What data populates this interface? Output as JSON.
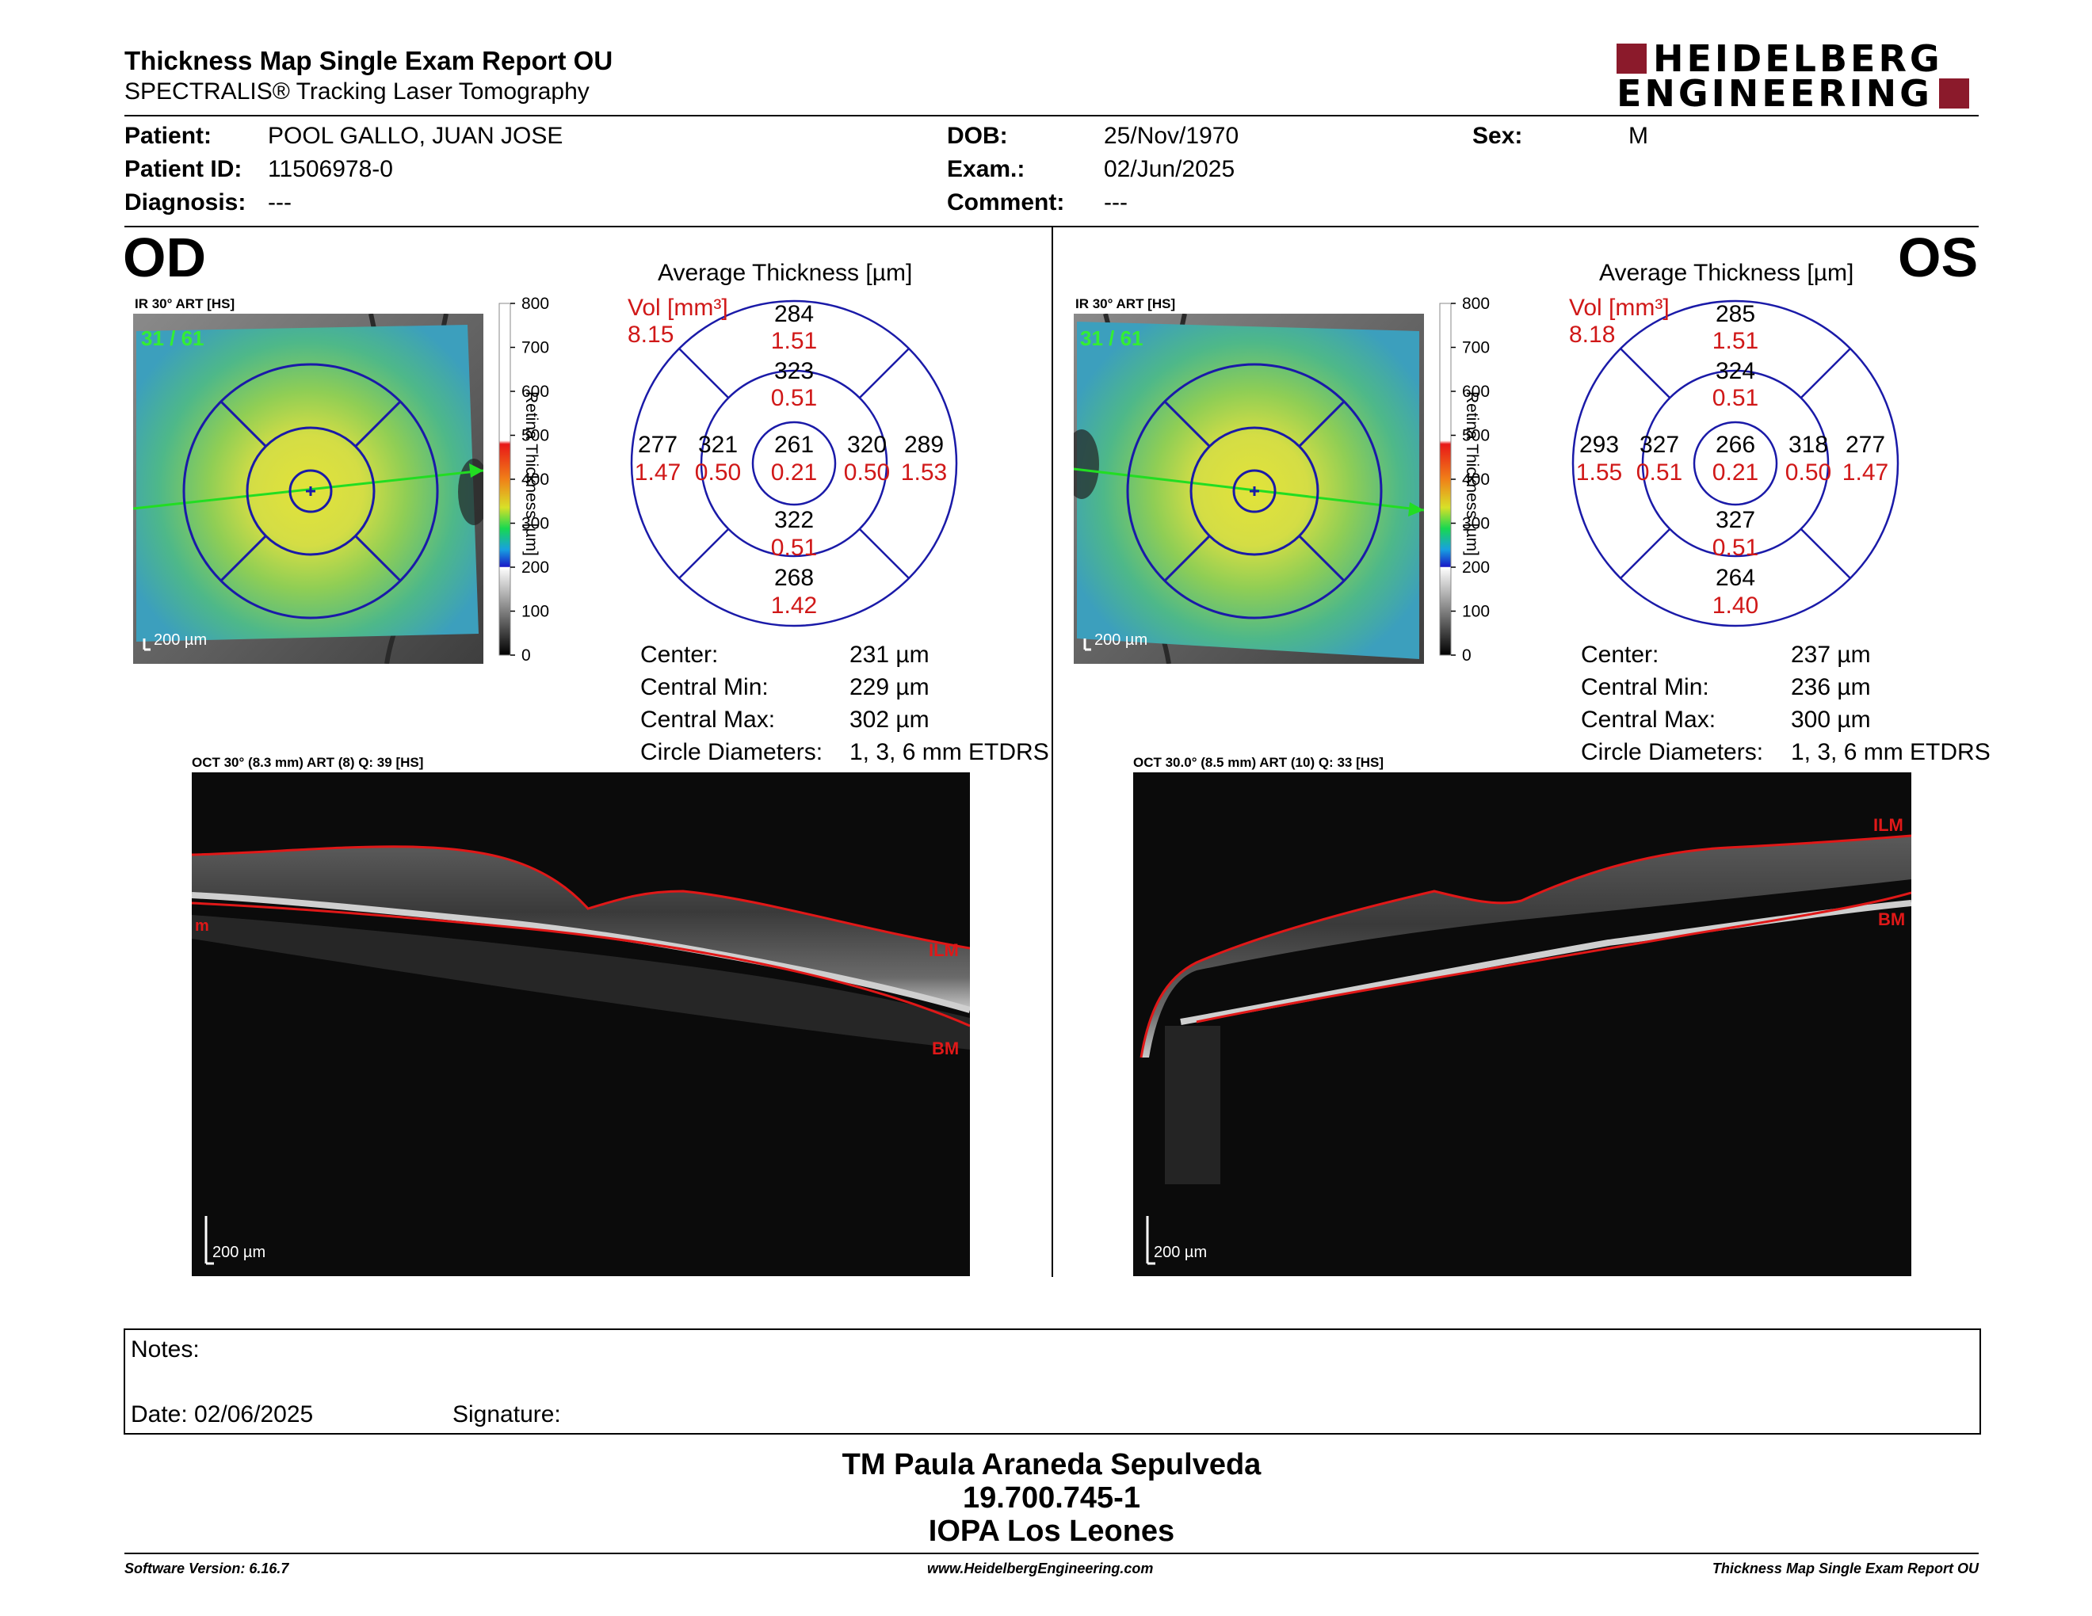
{
  "header": {
    "title": "Thickness Map Single Exam Report OU",
    "subtitle": "SPECTRALIS® Tracking Laser Tomography",
    "logo_line1": "HEIDELBERG",
    "logo_line2": "ENGINEERING",
    "logo_color": "#8b1a2b"
  },
  "patient": {
    "patient_label": "Patient:",
    "patient_value": "POOL GALLO, JUAN JOSE",
    "id_label": "Patient ID:",
    "id_value": "11506978-0",
    "diagnosis_label": "Diagnosis:",
    "diagnosis_value": "---",
    "dob_label": "DOB:",
    "dob_value": "25/Nov/1970",
    "exam_label": "Exam.:",
    "exam_value": "02/Jun/2025",
    "comment_label": "Comment:",
    "comment_value": "---",
    "sex_label": "Sex:",
    "sex_value": "M"
  },
  "colorbar": {
    "label": "Retina Thickness [µm]",
    "ticks": [
      "800",
      "700",
      "600",
      "500",
      "400",
      "300",
      "200",
      "100",
      "0"
    ]
  },
  "od": {
    "eye": "OD",
    "ir_label": "IR 30° ART [HS]",
    "ir_frames": "31 / 61",
    "scale": "200 µm",
    "avg_title": "Average Thickness [µm]",
    "vol_label": "Vol [mm³]",
    "vol_total": "8.15",
    "outer_sup": "284",
    "outer_sup_vol": "1.51",
    "inner_sup": "323",
    "inner_sup_vol": "0.51",
    "outer_left": "277",
    "outer_left_vol": "1.47",
    "inner_left": "321",
    "inner_left_vol": "0.50",
    "center": "261",
    "center_vol": "0.21",
    "inner_right": "320",
    "inner_right_vol": "0.50",
    "outer_right": "289",
    "outer_right_vol": "1.53",
    "inner_inf": "322",
    "inner_inf_vol": "0.51",
    "outer_inf": "268",
    "outer_inf_vol": "1.42",
    "stats": [
      {
        "label": "Center:",
        "value": "231 µm"
      },
      {
        "label": "Central Min:",
        "value": "229 µm"
      },
      {
        "label": "Central Max:",
        "value": "302 µm"
      },
      {
        "label": "Circle Diameters:",
        "value": "1, 3, 6 mm ETDRS"
      }
    ],
    "oct_label": "OCT 30° (8.3 mm) ART (8) Q: 39 [HS]",
    "ilm": "ILM",
    "bm": "BM",
    "left_mark": "m",
    "oct_scale": "200 µm"
  },
  "os": {
    "eye": "OS",
    "ir_label": "IR 30° ART [HS]",
    "ir_frames": "31 / 61",
    "scale": "200 µm",
    "avg_title": "Average Thickness [µm]",
    "vol_label": "Vol [mm³]",
    "vol_total": "8.18",
    "outer_sup": "285",
    "outer_sup_vol": "1.51",
    "inner_sup": "324",
    "inner_sup_vol": "0.51",
    "outer_left": "293",
    "outer_left_vol": "1.55",
    "inner_left": "327",
    "inner_left_vol": "0.51",
    "center": "266",
    "center_vol": "0.21",
    "inner_right": "318",
    "inner_right_vol": "0.50",
    "outer_right": "277",
    "outer_right_vol": "1.47",
    "inner_inf": "327",
    "inner_inf_vol": "0.51",
    "outer_inf": "264",
    "outer_inf_vol": "1.40",
    "stats": [
      {
        "label": "Center:",
        "value": "237 µm"
      },
      {
        "label": "Central Min:",
        "value": "236 µm"
      },
      {
        "label": "Central Max:",
        "value": "300 µm"
      },
      {
        "label": "Circle Diameters:",
        "value": "1, 3, 6 mm ETDRS"
      }
    ],
    "oct_label": "OCT 30.0° (8.5 mm) ART (10) Q: 33 [HS]",
    "ilm": "ILM",
    "bm": "BM",
    "oct_scale": "200 µm"
  },
  "notes": {
    "notes_label": "Notes:",
    "date_label": "Date: 02/06/2025",
    "signature_label": "Signature:"
  },
  "signature": {
    "line1": "TM Paula Araneda Sepulveda",
    "line2": "19.700.745-1",
    "line3": "IOPA Los Leones"
  },
  "footer": {
    "left": "Software Version: 6.16.7",
    "center": "www.HeidelbergEngineering.com",
    "right": "Thickness Map Single Exam Report OU"
  }
}
